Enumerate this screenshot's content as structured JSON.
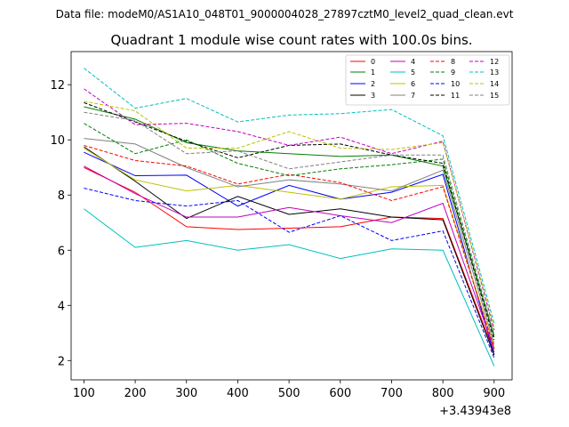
{
  "chart_data": {
    "type": "line",
    "suptitle": "Data file: modeM0/AS1A10_048T01_9000004028_27897cztM0_level2_quad_clean.evt",
    "title": "Quadrant 1 module wise count rates with 100.0s bins.",
    "xlabel": "",
    "ylabel": "",
    "offset_label": "+3.43943e8",
    "x": [
      100,
      200,
      300,
      400,
      500,
      600,
      700,
      800,
      900
    ],
    "xticks": [
      100,
      200,
      300,
      400,
      500,
      600,
      700,
      800,
      900
    ],
    "yticks": [
      2,
      4,
      6,
      8,
      10,
      12
    ],
    "xlim": [
      75,
      935
    ],
    "ylim": [
      1.3,
      13.2
    ],
    "legend_position": "top-right",
    "series": [
      {
        "name": "0",
        "color": "#ff0000",
        "dash": "solid",
        "values": [
          9.0,
          8.1,
          6.85,
          6.75,
          6.8,
          6.85,
          7.2,
          7.15,
          2.3
        ]
      },
      {
        "name": "1",
        "color": "#008000",
        "dash": "solid",
        "values": [
          11.2,
          10.75,
          9.9,
          9.6,
          9.5,
          9.4,
          9.45,
          9.05,
          2.9
        ]
      },
      {
        "name": "2",
        "color": "#0000ff",
        "dash": "solid",
        "values": [
          9.55,
          8.7,
          8.72,
          7.6,
          8.35,
          7.85,
          8.1,
          8.75,
          2.2
        ]
      },
      {
        "name": "3",
        "color": "#000000",
        "dash": "solid",
        "values": [
          9.75,
          8.5,
          7.15,
          7.95,
          7.3,
          7.5,
          7.2,
          7.1,
          2.2
        ]
      },
      {
        "name": "4",
        "color": "#bf00bf",
        "dash": "solid",
        "values": [
          9.05,
          8.05,
          7.2,
          7.2,
          7.55,
          7.25,
          7.0,
          7.7,
          2.4
        ]
      },
      {
        "name": "5",
        "color": "#00bfbf",
        "dash": "solid",
        "values": [
          7.5,
          6.1,
          6.35,
          6.0,
          6.2,
          5.7,
          6.05,
          6.0,
          1.8
        ]
      },
      {
        "name": "6",
        "color": "#bfbf00",
        "dash": "solid",
        "values": [
          9.7,
          8.55,
          8.15,
          8.35,
          8.1,
          7.85,
          8.3,
          8.35,
          2.5
        ]
      },
      {
        "name": "7",
        "color": "#808080",
        "dash": "solid",
        "values": [
          10.05,
          9.85,
          9.0,
          8.3,
          8.55,
          8.4,
          8.15,
          8.9,
          2.6
        ]
      },
      {
        "name": "8",
        "color": "#ff0000",
        "dash": "dashed",
        "values": [
          9.8,
          9.25,
          9.05,
          8.4,
          8.75,
          8.45,
          7.8,
          8.3,
          2.45
        ]
      },
      {
        "name": "9",
        "color": "#008000",
        "dash": "dashed",
        "values": [
          10.6,
          9.5,
          10.0,
          9.15,
          8.7,
          8.95,
          9.1,
          9.3,
          2.85
        ]
      },
      {
        "name": "10",
        "color": "#0000ff",
        "dash": "dashed",
        "values": [
          8.25,
          7.8,
          7.6,
          7.8,
          6.65,
          7.25,
          6.35,
          6.7,
          2.1
        ]
      },
      {
        "name": "11",
        "color": "#000000",
        "dash": "dashed",
        "values": [
          11.35,
          10.65,
          9.95,
          9.35,
          9.8,
          9.85,
          9.45,
          9.15,
          2.75
        ]
      },
      {
        "name": "12",
        "color": "#bf00bf",
        "dash": "dashed",
        "values": [
          11.85,
          10.55,
          10.6,
          10.3,
          9.8,
          10.1,
          9.5,
          9.95,
          3.1
        ]
      },
      {
        "name": "13",
        "color": "#00bfbf",
        "dash": "dashed",
        "values": [
          12.6,
          11.15,
          11.5,
          10.65,
          10.9,
          10.95,
          11.1,
          10.15,
          3.35
        ]
      },
      {
        "name": "14",
        "color": "#bfbf00",
        "dash": "dashed",
        "values": [
          11.4,
          11.05,
          9.7,
          9.7,
          10.3,
          9.7,
          9.65,
          9.9,
          3.2
        ]
      },
      {
        "name": "15",
        "color": "#808080",
        "dash": "dashed",
        "values": [
          11.0,
          10.7,
          9.5,
          9.6,
          8.95,
          9.2,
          9.45,
          9.45,
          2.95
        ]
      }
    ]
  }
}
